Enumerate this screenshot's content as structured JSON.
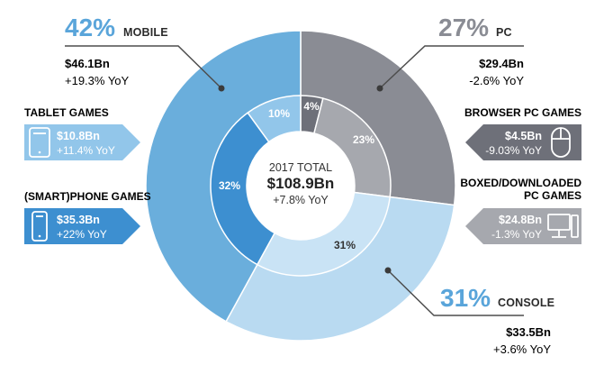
{
  "chart_data": {
    "type": "donut",
    "center": {
      "label": "2017 TOTAL",
      "total": "$108.9Bn",
      "yoy": "+7.8% YoY"
    },
    "outer_ring": [
      {
        "name": "PC",
        "percent": 27,
        "percent_label": "27%",
        "value": "$29.4Bn",
        "yoy": "-2.6% YoY",
        "color": "#8a8c94"
      },
      {
        "name": "CONSOLE",
        "percent": 31,
        "percent_label": "31%",
        "value": "$33.5Bn",
        "yoy": "+3.6% YoY",
        "color": "#b9daf1"
      },
      {
        "name": "MOBILE",
        "percent": 42,
        "percent_label": "42%",
        "value": "$46.1Bn",
        "yoy": "+19.3% YoY",
        "color": "#6aaedc"
      }
    ],
    "inner_ring": [
      {
        "name": "BROWSER PC GAMES",
        "percent": 4,
        "label": "4%",
        "value": "$4.5Bn",
        "yoy": "-9.03% YoY",
        "color": "#6e7079"
      },
      {
        "name": "BOXED/DOWNLOADED PC GAMES",
        "percent": 23,
        "label": "23%",
        "value": "$24.8Bn",
        "yoy": "-1.3% YoY",
        "color": "#a6a8ae"
      },
      {
        "name": "CONSOLE",
        "percent": 31,
        "label": "31%",
        "value": "$33.5Bn",
        "yoy": "+3.6% YoY",
        "color": "#c9e3f5"
      },
      {
        "name": "(SMART)PHONE GAMES",
        "percent": 32,
        "label": "32%",
        "value": "$35.3Bn",
        "yoy": "+22% YoY",
        "color": "#3d8fd0"
      },
      {
        "name": "TABLET GAMES",
        "percent": 10,
        "label": "10%",
        "value": "$10.8Bn",
        "yoy": "+11.4% YoY",
        "color": "#92c6ea"
      }
    ],
    "colors": {
      "accent_text": "#5aa5da",
      "pc_text": "#8a8c94",
      "line": "#4d4d4d"
    },
    "icons": {
      "tablet": "tablet-icon",
      "phone": "smartphone-icon",
      "browser": "mouse-icon",
      "boxed": "desktop-computer-icon"
    }
  }
}
